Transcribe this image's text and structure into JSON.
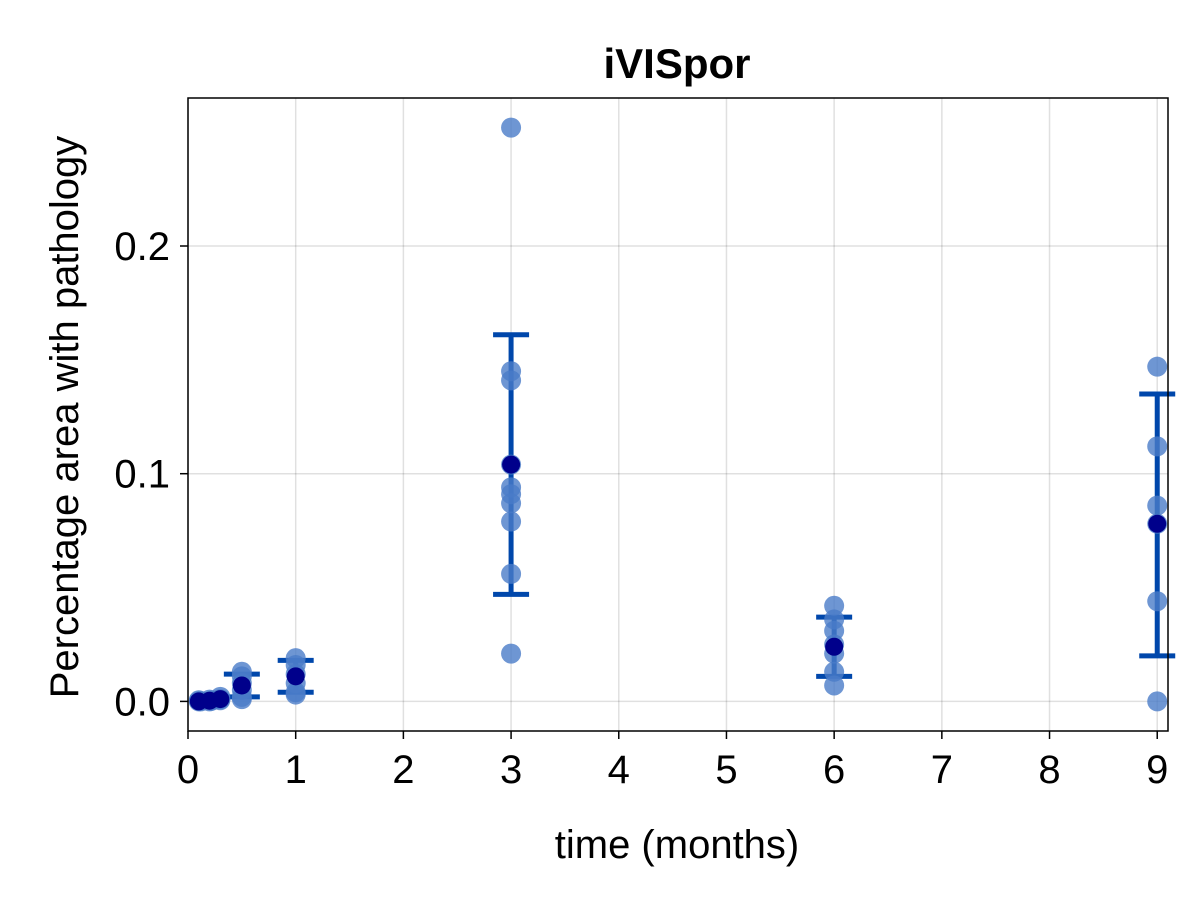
{
  "chart_data": {
    "type": "scatter",
    "title": "iVISpor",
    "xlabel": "time (months)",
    "ylabel": "Percentage area with pathology",
    "xlim": [
      0,
      9.1
    ],
    "ylim": [
      -0.013,
      0.265
    ],
    "xticks": [
      0,
      1,
      2,
      3,
      4,
      5,
      6,
      7,
      8,
      9
    ],
    "xtick_labels": [
      "0",
      "1",
      "2",
      "3",
      "4",
      "5",
      "6",
      "7",
      "8",
      "9"
    ],
    "yticks": [
      0.0,
      0.1,
      0.2
    ],
    "ytick_labels": [
      "0.0",
      "0.1",
      "0.2"
    ],
    "grid": true,
    "legend": "none",
    "colors": {
      "points": "#4a7cc8",
      "mean": "#00008b",
      "errorbar": "#0047ab"
    },
    "series": [
      {
        "kind": "individual",
        "points": [
          {
            "x": 0.1,
            "y": 0.0
          },
          {
            "x": 0.1,
            "y": 0.0005
          },
          {
            "x": 0.12,
            "y": 0.0
          },
          {
            "x": 0.2,
            "y": 0.0
          },
          {
            "x": 0.2,
            "y": 0.0008
          },
          {
            "x": 0.22,
            "y": 0.0003
          },
          {
            "x": 0.3,
            "y": 0.001
          },
          {
            "x": 0.3,
            "y": 0.002
          },
          {
            "x": 0.3,
            "y": 0.0005
          },
          {
            "x": 0.5,
            "y": 0.013
          },
          {
            "x": 0.5,
            "y": 0.011
          },
          {
            "x": 0.5,
            "y": 0.008
          },
          {
            "x": 0.5,
            "y": 0.005
          },
          {
            "x": 0.5,
            "y": 0.002
          },
          {
            "x": 0.5,
            "y": 0.001
          },
          {
            "x": 1,
            "y": 0.019
          },
          {
            "x": 1,
            "y": 0.016
          },
          {
            "x": 1,
            "y": 0.012
          },
          {
            "x": 1,
            "y": 0.008
          },
          {
            "x": 1,
            "y": 0.004
          },
          {
            "x": 1,
            "y": 0.003
          },
          {
            "x": 3,
            "y": 0.252
          },
          {
            "x": 3,
            "y": 0.145
          },
          {
            "x": 3,
            "y": 0.141
          },
          {
            "x": 3,
            "y": 0.104
          },
          {
            "x": 3,
            "y": 0.094
          },
          {
            "x": 3,
            "y": 0.091
          },
          {
            "x": 3,
            "y": 0.087
          },
          {
            "x": 3,
            "y": 0.079
          },
          {
            "x": 3,
            "y": 0.056
          },
          {
            "x": 3,
            "y": 0.021
          },
          {
            "x": 6,
            "y": 0.042
          },
          {
            "x": 6,
            "y": 0.036
          },
          {
            "x": 6,
            "y": 0.031
          },
          {
            "x": 6,
            "y": 0.025
          },
          {
            "x": 6,
            "y": 0.021
          },
          {
            "x": 6,
            "y": 0.013
          },
          {
            "x": 6,
            "y": 0.007
          },
          {
            "x": 9,
            "y": 0.147
          },
          {
            "x": 9,
            "y": 0.112
          },
          {
            "x": 9,
            "y": 0.086
          },
          {
            "x": 9,
            "y": 0.078
          },
          {
            "x": 9,
            "y": 0.044
          },
          {
            "x": 9,
            "y": 0.0
          }
        ]
      },
      {
        "kind": "mean_with_errorbars",
        "points": [
          {
            "x": 0.1,
            "y": 0.0,
            "lo": 0.0,
            "hi": 0.0
          },
          {
            "x": 0.2,
            "y": 0.0003,
            "lo": 0.0,
            "hi": 0.0006
          },
          {
            "x": 0.3,
            "y": 0.001,
            "lo": 0.0003,
            "hi": 0.0018
          },
          {
            "x": 0.5,
            "y": 0.007,
            "lo": 0.002,
            "hi": 0.012
          },
          {
            "x": 1,
            "y": 0.011,
            "lo": 0.004,
            "hi": 0.018
          },
          {
            "x": 3,
            "y": 0.104,
            "lo": 0.047,
            "hi": 0.161
          },
          {
            "x": 6,
            "y": 0.024,
            "lo": 0.011,
            "hi": 0.037
          },
          {
            "x": 9,
            "y": 0.078,
            "lo": 0.02,
            "hi": 0.135
          }
        ]
      }
    ]
  }
}
